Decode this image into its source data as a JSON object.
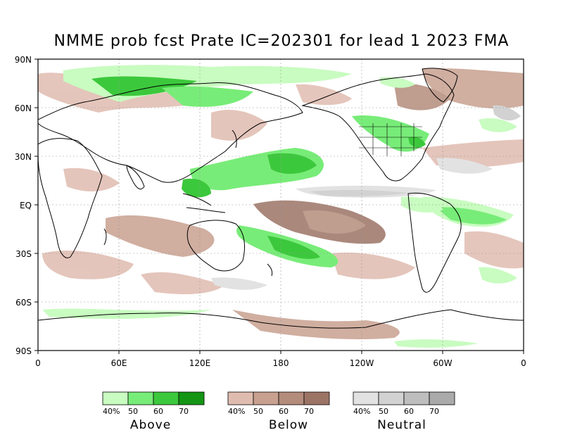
{
  "title": "NMME prob fcst Prate IC=202301 for lead 1 2023 FMA",
  "lat_labels": [
    "90N",
    "60N",
    "30N",
    "EQ",
    "30S",
    "60S",
    "90S"
  ],
  "lon_labels": [
    "0",
    "60E",
    "120E",
    "180",
    "120W",
    "60W",
    "0"
  ],
  "legends": [
    {
      "name": "Above",
      "ticks": [
        "40%",
        "50",
        "60",
        "70"
      ],
      "colors": [
        "#c8fcc0",
        "#78ec78",
        "#3cc83c",
        "#149614"
      ]
    },
    {
      "name": "Below",
      "ticks": [
        "40%",
        "50",
        "60",
        "70"
      ],
      "colors": [
        "#e0bcb0",
        "#c8a090",
        "#b48c7c",
        "#9c7466"
      ]
    },
    {
      "name": "Neutral",
      "ticks": [
        "40%",
        "50",
        "60",
        "70"
      ],
      "colors": [
        "#e2e2e2",
        "#d2d2d2",
        "#bebebe",
        "#aaaaaa"
      ]
    }
  ]
}
